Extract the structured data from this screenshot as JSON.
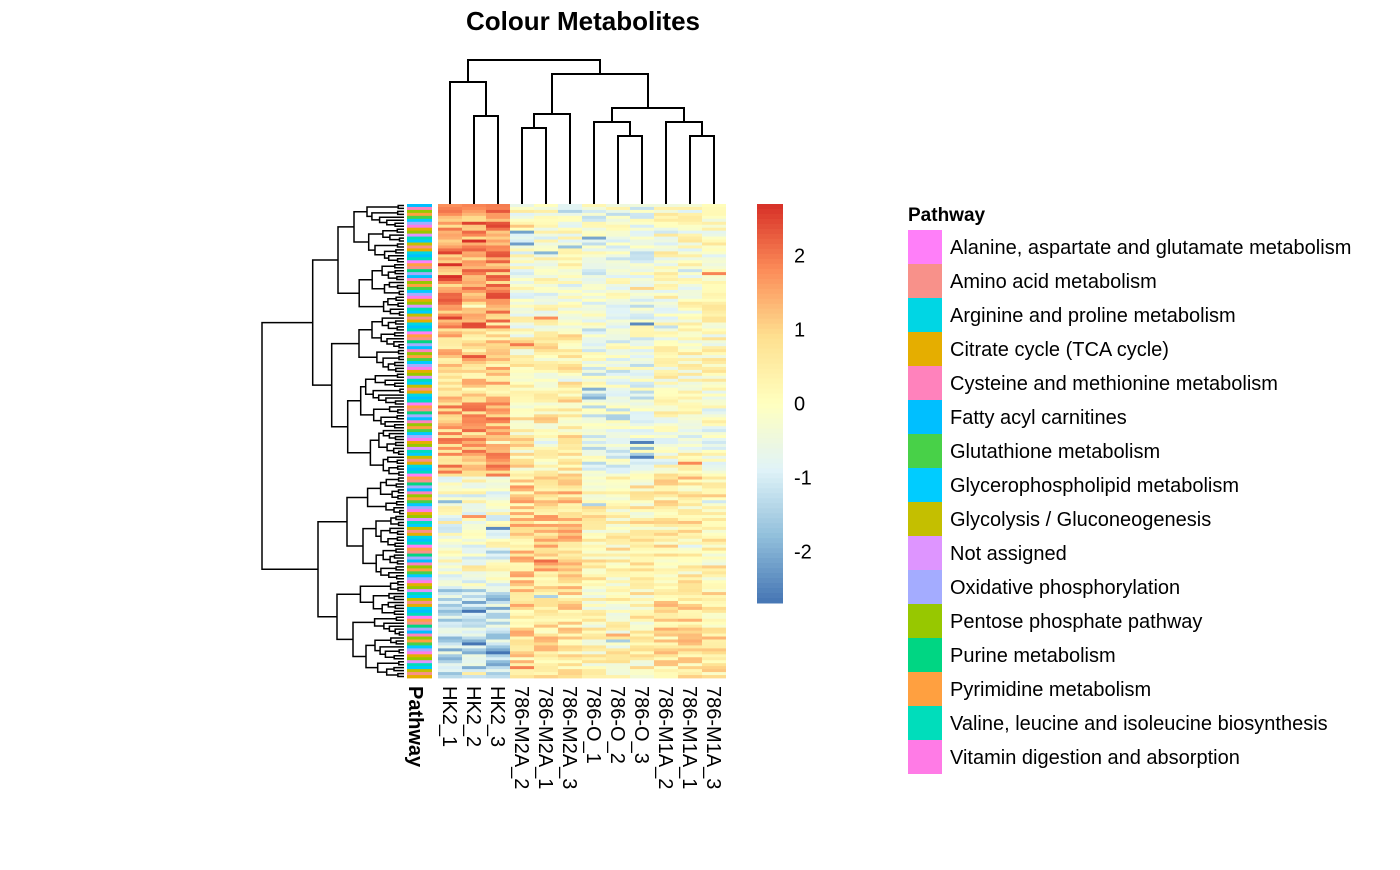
{
  "chart_data": {
    "type": "heatmap",
    "title": "Colour Metabolites",
    "columns": [
      "HK2_1",
      "HK2_2",
      "HK2_3",
      "786-M2A_2",
      "786-M2A_1",
      "786-M2A_3",
      "786-O_1",
      "786-O_2",
      "786-O_3",
      "786-M1A_2",
      "786-M1A_1",
      "786-M1A_3"
    ],
    "row_count": 160,
    "column_groups": [
      {
        "name": "HK2",
        "columns": [
          0,
          1,
          2
        ]
      },
      {
        "name": "786-M2A",
        "columns": [
          3,
          4,
          5
        ]
      },
      {
        "name": "786-O",
        "columns": [
          6,
          7,
          8
        ]
      },
      {
        "name": "786-M1A",
        "columns": [
          9,
          10,
          11
        ]
      }
    ],
    "color_scale": {
      "min": -2.7,
      "max": 2.7,
      "ticks": [
        2,
        1,
        0,
        -1,
        -2
      ],
      "colors": [
        "#4575b4",
        "#91bfdb",
        "#e0f3f8",
        "#ffffbf",
        "#fee090",
        "#fc8d59",
        "#d73027"
      ]
    },
    "row_annotation": {
      "label": "Pathway",
      "legend_title": "Pathway",
      "categories": [
        {
          "name": "Alanine, aspartate and glutamate metabolism",
          "color": "#FF7FF9"
        },
        {
          "name": "Amino acid metabolism",
          "color": "#F8918A"
        },
        {
          "name": "Arginine and proline metabolism",
          "color": "#00D6E4"
        },
        {
          "name": "Citrate cycle (TCA cycle)",
          "color": "#E5AE00"
        },
        {
          "name": "Cysteine and methionine metabolism",
          "color": "#FF82BC"
        },
        {
          "name": "Fatty acyl carnitines",
          "color": "#00BFFF"
        },
        {
          "name": "Glutathione metabolism",
          "color": "#48D148"
        },
        {
          "name": "Glycerophospholipid metabolism",
          "color": "#00CCFF"
        },
        {
          "name": "Glycolysis / Gluconeogenesis",
          "color": "#C4BF00"
        },
        {
          "name": "Not assigned",
          "color": "#DE95FF"
        },
        {
          "name": "Oxidative phosphorylation",
          "color": "#A4ACFF"
        },
        {
          "name": "Pentose phosphate pathway",
          "color": "#97C800"
        },
        {
          "name": "Purine metabolism",
          "color": "#00D683"
        },
        {
          "name": "Pyrimidine metabolism",
          "color": "#FFA040"
        },
        {
          "name": "Valine, leucine and isoleucine biosynthesis",
          "color": "#00DDBB"
        },
        {
          "name": "Vitamin digestion and absorption",
          "color": "#FF7BE6"
        }
      ]
    }
  }
}
